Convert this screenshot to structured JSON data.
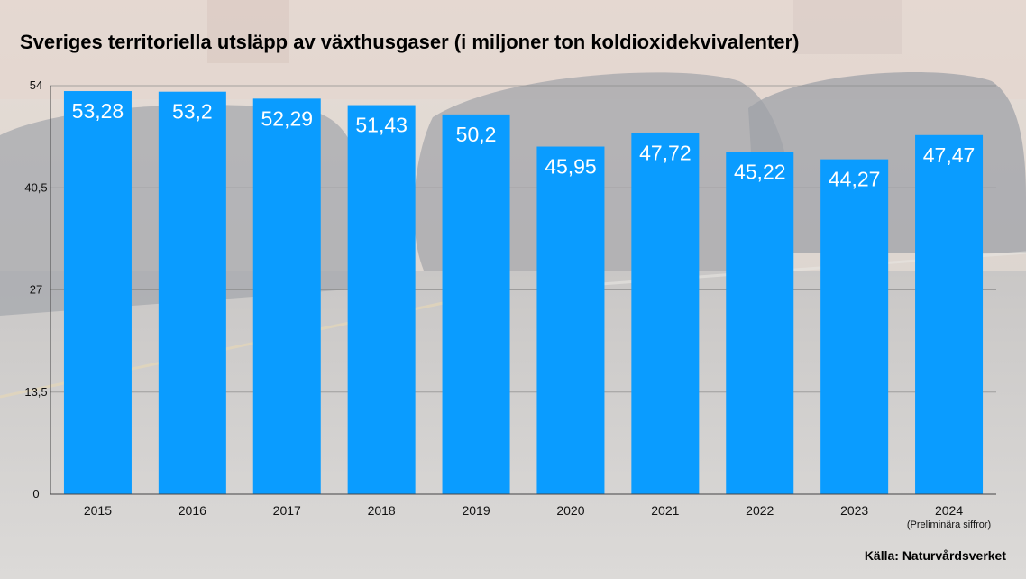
{
  "header": {
    "title": "Sveriges territoriella utsläpp av växthusgaser (i miljoner ton koldioxidekvivalenter)"
  },
  "footer": {
    "source": "Källa: Naturvårdsverket"
  },
  "colors": {
    "bar": "#0a9cff",
    "background": "#d9d7d5"
  },
  "chart_data": {
    "type": "bar",
    "title": "Sveriges territoriella utsläpp av växthusgaser (i miljoner ton koldioxidekvivalenter)",
    "categories": [
      "2015",
      "2016",
      "2017",
      "2018",
      "2019",
      "2020",
      "2021",
      "2022",
      "2023",
      "2024"
    ],
    "values": [
      53.28,
      53.2,
      52.29,
      51.43,
      50.2,
      45.95,
      47.72,
      45.22,
      44.27,
      47.47
    ],
    "value_labels": [
      "53,28",
      "53,2",
      "52,29",
      "51,43",
      "50,2",
      "45,95",
      "47,72",
      "45,22",
      "44,27",
      "47,47"
    ],
    "category_notes": [
      "",
      "",
      "",
      "",
      "",
      "",
      "",
      "",
      "",
      "(Preliminära siffror)"
    ],
    "yticks": [
      0,
      13.5,
      27,
      40.5,
      54
    ],
    "ytick_labels": [
      "0",
      "13,5",
      "27",
      "40,5",
      "54"
    ],
    "ylim": [
      0,
      54
    ],
    "xlabel": "",
    "ylabel": "",
    "grid": true,
    "legend": "none"
  }
}
